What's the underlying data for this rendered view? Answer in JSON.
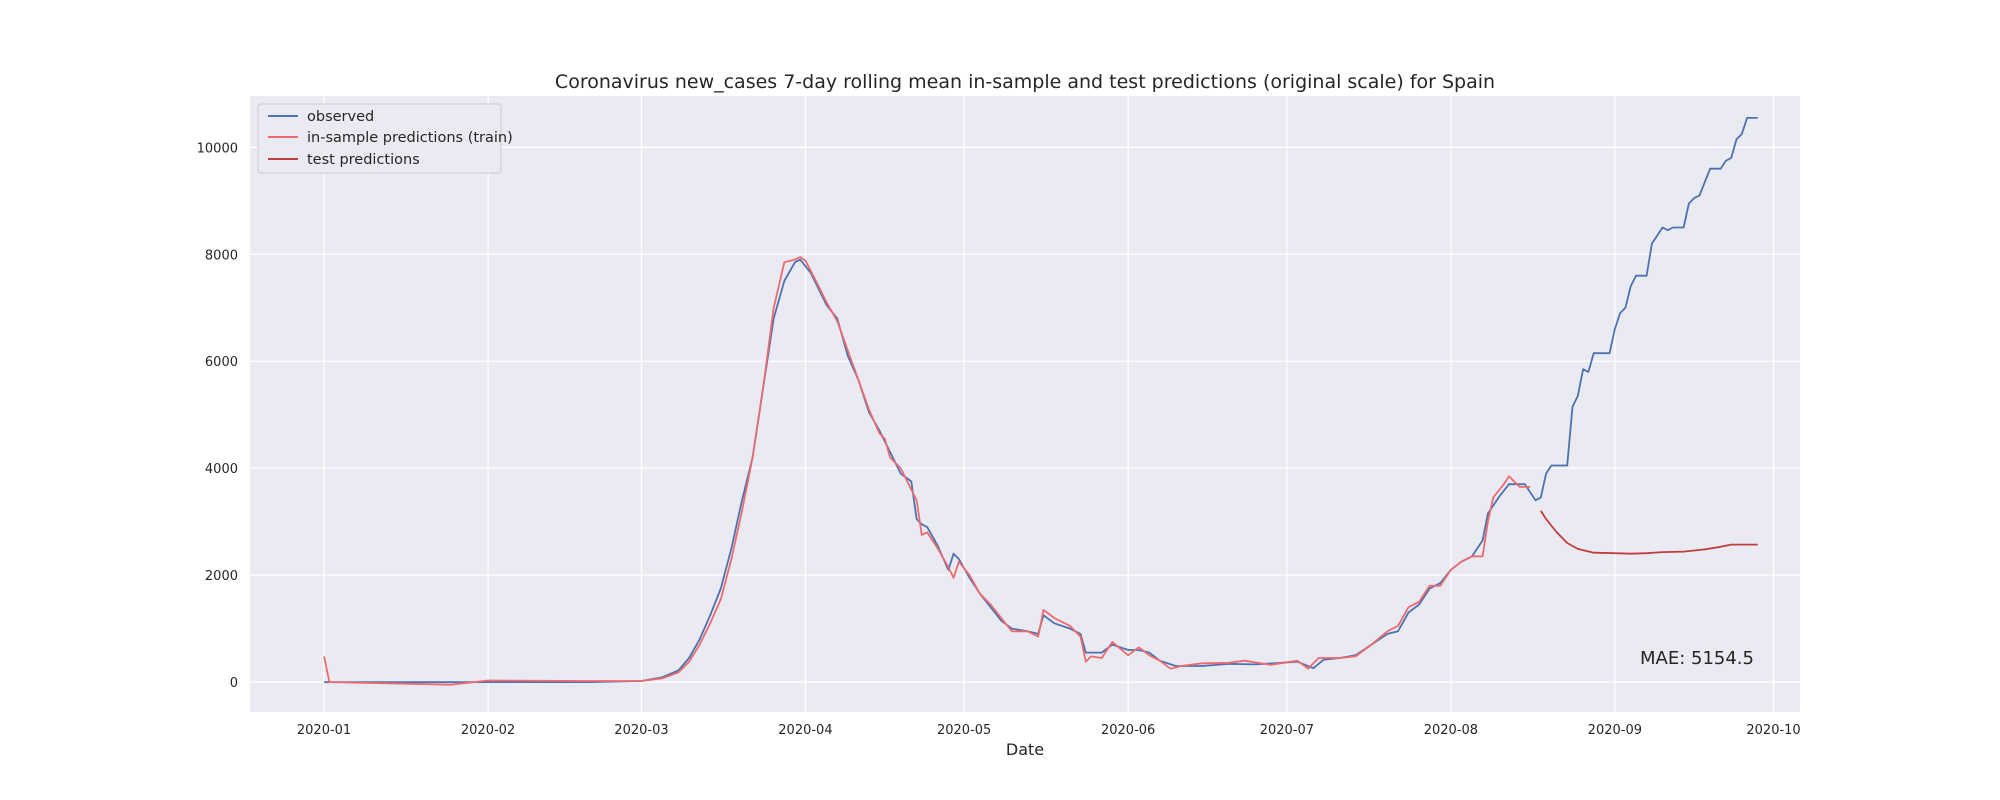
{
  "chart_data": {
    "type": "line",
    "title": "Coronavirus new_cases 7-day rolling mean in-sample and test predictions (original scale) for Spain",
    "xlabel": "Date",
    "ylabel": "",
    "x_range": [
      "2019-12-18",
      "2020-10-06"
    ],
    "ylim": [
      -560,
      10960
    ],
    "x_ticks": [
      "2020-01",
      "2020-02",
      "2020-03",
      "2020-04",
      "2020-05",
      "2020-06",
      "2020-07",
      "2020-08",
      "2020-09",
      "2020-10"
    ],
    "y_ticks": [
      0,
      2000,
      4000,
      6000,
      8000,
      10000
    ],
    "grid": true,
    "legend_position": "top-left",
    "annotation": "MAE: 5154.5",
    "series": [
      {
        "name": "observed",
        "color": "#4c72b0",
        "points": [
          [
            "2020-01-01",
            0
          ],
          [
            "2020-02-20",
            0
          ],
          [
            "2020-03-01",
            20
          ],
          [
            "2020-03-05",
            90
          ],
          [
            "2020-03-08",
            220
          ],
          [
            "2020-03-10",
            450
          ],
          [
            "2020-03-12",
            800
          ],
          [
            "2020-03-14",
            1250
          ],
          [
            "2020-03-16",
            1750
          ],
          [
            "2020-03-18",
            2500
          ],
          [
            "2020-03-20",
            3400
          ],
          [
            "2020-03-22",
            4200
          ],
          [
            "2020-03-24",
            5500
          ],
          [
            "2020-03-26",
            6800
          ],
          [
            "2020-03-28",
            7500
          ],
          [
            "2020-03-30",
            7850
          ],
          [
            "2020-03-31",
            7900
          ],
          [
            "2020-04-02",
            7650
          ],
          [
            "2020-04-05",
            7050
          ],
          [
            "2020-04-07",
            6800
          ],
          [
            "2020-04-09",
            6100
          ],
          [
            "2020-04-11",
            5650
          ],
          [
            "2020-04-13",
            5050
          ],
          [
            "2020-04-15",
            4700
          ],
          [
            "2020-04-17",
            4300
          ],
          [
            "2020-04-19",
            3900
          ],
          [
            "2020-04-21",
            3750
          ],
          [
            "2020-04-22",
            3050
          ],
          [
            "2020-04-23",
            2950
          ],
          [
            "2020-04-24",
            2900
          ],
          [
            "2020-04-26",
            2550
          ],
          [
            "2020-04-28",
            2100
          ],
          [
            "2020-04-29",
            2400
          ],
          [
            "2020-04-30",
            2300
          ],
          [
            "2020-05-02",
            1950
          ],
          [
            "2020-05-04",
            1650
          ],
          [
            "2020-05-06",
            1400
          ],
          [
            "2020-05-08",
            1150
          ],
          [
            "2020-05-10",
            1000
          ],
          [
            "2020-05-13",
            950
          ],
          [
            "2020-05-15",
            900
          ],
          [
            "2020-05-16",
            1250
          ],
          [
            "2020-05-18",
            1100
          ],
          [
            "2020-05-21",
            1000
          ],
          [
            "2020-05-23",
            900
          ],
          [
            "2020-05-24",
            550
          ],
          [
            "2020-05-27",
            550
          ],
          [
            "2020-05-29",
            700
          ],
          [
            "2020-06-01",
            600
          ],
          [
            "2020-06-03",
            600
          ],
          [
            "2020-06-05",
            550
          ],
          [
            "2020-06-07",
            400
          ],
          [
            "2020-06-10",
            300
          ],
          [
            "2020-06-15",
            300
          ],
          [
            "2020-06-20",
            340
          ],
          [
            "2020-06-25",
            330
          ],
          [
            "2020-06-30",
            360
          ],
          [
            "2020-07-03",
            380
          ],
          [
            "2020-07-06",
            260
          ],
          [
            "2020-07-08",
            420
          ],
          [
            "2020-07-11",
            450
          ],
          [
            "2020-07-14",
            500
          ],
          [
            "2020-07-17",
            700
          ],
          [
            "2020-07-20",
            900
          ],
          [
            "2020-07-22",
            950
          ],
          [
            "2020-07-24",
            1300
          ],
          [
            "2020-07-26",
            1450
          ],
          [
            "2020-07-28",
            1750
          ],
          [
            "2020-07-30",
            1850
          ],
          [
            "2020-08-01",
            2100
          ],
          [
            "2020-08-03",
            2250
          ],
          [
            "2020-08-05",
            2350
          ],
          [
            "2020-08-07",
            2650
          ],
          [
            "2020-08-08",
            3150
          ],
          [
            "2020-08-10",
            3450
          ],
          [
            "2020-08-12",
            3700
          ],
          [
            "2020-08-15",
            3700
          ],
          [
            "2020-08-17",
            3400
          ],
          [
            "2020-08-18",
            3450
          ],
          [
            "2020-08-19",
            3900
          ],
          [
            "2020-08-20",
            4050
          ],
          [
            "2020-08-23",
            4050
          ],
          [
            "2020-08-24",
            5150
          ],
          [
            "2020-08-25",
            5350
          ],
          [
            "2020-08-26",
            5850
          ],
          [
            "2020-08-27",
            5800
          ],
          [
            "2020-08-28",
            6150
          ],
          [
            "2020-08-31",
            6150
          ],
          [
            "2020-09-01",
            6600
          ],
          [
            "2020-09-02",
            6900
          ],
          [
            "2020-09-03",
            7000
          ],
          [
            "2020-09-04",
            7400
          ],
          [
            "2020-09-05",
            7600
          ],
          [
            "2020-09-07",
            7600
          ],
          [
            "2020-09-08",
            8200
          ],
          [
            "2020-09-09",
            8350
          ],
          [
            "2020-09-10",
            8500
          ],
          [
            "2020-09-11",
            8450
          ],
          [
            "2020-09-12",
            8500
          ],
          [
            "2020-09-14",
            8500
          ],
          [
            "2020-09-15",
            8950
          ],
          [
            "2020-09-16",
            9050
          ],
          [
            "2020-09-17",
            9100
          ],
          [
            "2020-09-19",
            9600
          ],
          [
            "2020-09-21",
            9600
          ],
          [
            "2020-09-22",
            9750
          ],
          [
            "2020-09-23",
            9800
          ],
          [
            "2020-09-24",
            10150
          ],
          [
            "2020-09-25",
            10250
          ],
          [
            "2020-09-26",
            10550
          ],
          [
            "2020-09-28",
            10550
          ]
        ]
      },
      {
        "name": "in-sample predictions (train)",
        "color": "#ee6a6f",
        "points": [
          [
            "2020-01-01",
            480
          ],
          [
            "2020-01-02",
            0
          ],
          [
            "2020-01-25",
            -50
          ],
          [
            "2020-02-01",
            30
          ],
          [
            "2020-02-20",
            20
          ],
          [
            "2020-03-01",
            20
          ],
          [
            "2020-03-05",
            70
          ],
          [
            "2020-03-08",
            180
          ],
          [
            "2020-03-10",
            380
          ],
          [
            "2020-03-12",
            700
          ],
          [
            "2020-03-14",
            1100
          ],
          [
            "2020-03-16",
            1550
          ],
          [
            "2020-03-18",
            2300
          ],
          [
            "2020-03-20",
            3200
          ],
          [
            "2020-03-22",
            4200
          ],
          [
            "2020-03-24",
            5500
          ],
          [
            "2020-03-26",
            7000
          ],
          [
            "2020-03-28",
            7850
          ],
          [
            "2020-03-30",
            7900
          ],
          [
            "2020-03-31",
            7950
          ],
          [
            "2020-04-01",
            7880
          ],
          [
            "2020-04-03",
            7500
          ],
          [
            "2020-04-05",
            7100
          ],
          [
            "2020-04-07",
            6750
          ],
          [
            "2020-04-09",
            6200
          ],
          [
            "2020-04-11",
            5650
          ],
          [
            "2020-04-13",
            5100
          ],
          [
            "2020-04-15",
            4650
          ],
          [
            "2020-04-16",
            4550
          ],
          [
            "2020-04-17",
            4200
          ],
          [
            "2020-04-19",
            4000
          ],
          [
            "2020-04-21",
            3600
          ],
          [
            "2020-04-22",
            3400
          ],
          [
            "2020-04-23",
            2750
          ],
          [
            "2020-04-24",
            2800
          ],
          [
            "2020-04-26",
            2500
          ],
          [
            "2020-04-28",
            2150
          ],
          [
            "2020-04-29",
            1950
          ],
          [
            "2020-04-30",
            2250
          ],
          [
            "2020-05-02",
            2000
          ],
          [
            "2020-05-04",
            1650
          ],
          [
            "2020-05-06",
            1450
          ],
          [
            "2020-05-08",
            1200
          ],
          [
            "2020-05-10",
            950
          ],
          [
            "2020-05-13",
            950
          ],
          [
            "2020-05-15",
            850
          ],
          [
            "2020-05-16",
            1350
          ],
          [
            "2020-05-18",
            1200
          ],
          [
            "2020-05-21",
            1050
          ],
          [
            "2020-05-23",
            850
          ],
          [
            "2020-05-24",
            380
          ],
          [
            "2020-05-25",
            480
          ],
          [
            "2020-05-27",
            450
          ],
          [
            "2020-05-29",
            750
          ],
          [
            "2020-06-01",
            500
          ],
          [
            "2020-06-03",
            650
          ],
          [
            "2020-06-05",
            500
          ],
          [
            "2020-06-07",
            400
          ],
          [
            "2020-06-09",
            250
          ],
          [
            "2020-06-11",
            300
          ],
          [
            "2020-06-15",
            350
          ],
          [
            "2020-06-20",
            360
          ],
          [
            "2020-06-23",
            400
          ],
          [
            "2020-06-28",
            320
          ],
          [
            "2020-07-01",
            370
          ],
          [
            "2020-07-03",
            400
          ],
          [
            "2020-07-05",
            250
          ],
          [
            "2020-07-07",
            450
          ],
          [
            "2020-07-11",
            450
          ],
          [
            "2020-07-14",
            480
          ],
          [
            "2020-07-17",
            700
          ],
          [
            "2020-07-20",
            950
          ],
          [
            "2020-07-22",
            1050
          ],
          [
            "2020-07-24",
            1400
          ],
          [
            "2020-07-26",
            1500
          ],
          [
            "2020-07-28",
            1800
          ],
          [
            "2020-07-30",
            1800
          ],
          [
            "2020-08-01",
            2100
          ],
          [
            "2020-08-03",
            2250
          ],
          [
            "2020-08-05",
            2350
          ],
          [
            "2020-08-07",
            2350
          ],
          [
            "2020-08-08",
            3000
          ],
          [
            "2020-08-09",
            3450
          ],
          [
            "2020-08-11",
            3700
          ],
          [
            "2020-08-12",
            3850
          ],
          [
            "2020-08-14",
            3650
          ],
          [
            "2020-08-16",
            3650
          ]
        ]
      },
      {
        "name": "test predictions",
        "color": "#c03d3e",
        "points": [
          [
            "2020-08-18",
            3200
          ],
          [
            "2020-08-19",
            3050
          ],
          [
            "2020-08-21",
            2800
          ],
          [
            "2020-08-23",
            2600
          ],
          [
            "2020-08-25",
            2490
          ],
          [
            "2020-08-28",
            2420
          ],
          [
            "2020-09-01",
            2410
          ],
          [
            "2020-09-04",
            2400
          ],
          [
            "2020-09-07",
            2410
          ],
          [
            "2020-09-10",
            2430
          ],
          [
            "2020-09-14",
            2440
          ],
          [
            "2020-09-18",
            2480
          ],
          [
            "2020-09-21",
            2530
          ],
          [
            "2020-09-23",
            2570
          ],
          [
            "2020-09-28",
            2570
          ]
        ]
      }
    ]
  },
  "legend": {
    "items": [
      {
        "label": "observed",
        "color": "#4c72b0"
      },
      {
        "label": "in-sample predictions (train)",
        "color": "#ee6a6f"
      },
      {
        "label": "test predictions",
        "color": "#c03d3e"
      }
    ]
  },
  "colors": {
    "plot_background": "#eaeaf2",
    "grid": "#ffffff",
    "text": "#262626"
  }
}
